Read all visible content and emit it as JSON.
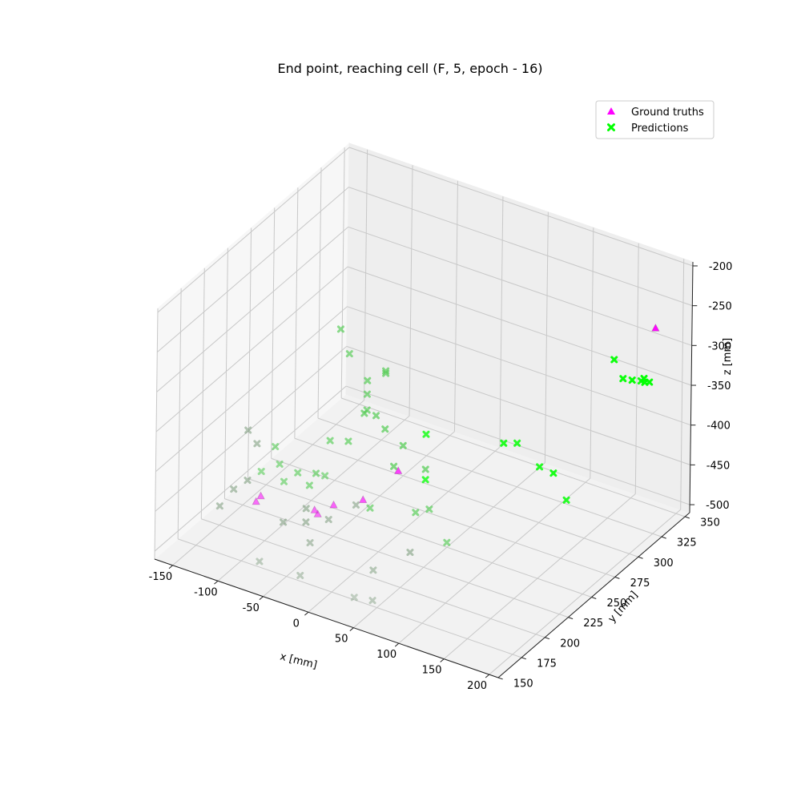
{
  "chart_data": {
    "type": "scatter",
    "projection": "3d",
    "title": "End point, reaching cell (F, 5, epoch - 16)",
    "xlabel": "x [mm]",
    "ylabel": "y [mm]",
    "zlabel": "z [mm]",
    "xlim": [
      -170,
      210
    ],
    "ylim": [
      150,
      355
    ],
    "zlim": [
      -510,
      -195
    ],
    "xticks": [
      -150,
      -100,
      -50,
      0,
      50,
      100,
      150,
      200
    ],
    "yticks": [
      150,
      175,
      200,
      225,
      250,
      275,
      300,
      325,
      350
    ],
    "zticks": [
      -200,
      -250,
      -300,
      -350,
      -400,
      -450,
      -500
    ],
    "grid": true,
    "legend_position": "top-right",
    "series": [
      {
        "name": "Ground truths",
        "marker": "triangle",
        "color": "#ff00ff",
        "points": [
          {
            "x": 180,
            "y": 345,
            "z": -280
          },
          {
            "x": -28,
            "y": 273,
            "z": -468
          },
          {
            "x": -38,
            "y": 245,
            "z": -480
          },
          {
            "x": -55,
            "y": 230,
            "z": -478
          },
          {
            "x": -52,
            "y": 210,
            "z": -468
          },
          {
            "x": -115,
            "y": 210,
            "z": -470
          },
          {
            "x": -115,
            "y": 205,
            "z": -472
          },
          {
            "x": -20,
            "y": 175,
            "z": -415
          }
        ]
      },
      {
        "name": "Predictions",
        "marker": "x",
        "color": "#00ff00",
        "points": [
          {
            "x": 150,
            "y": 340,
            "z": -350
          },
          {
            "x": 155,
            "y": 345,
            "z": -355
          },
          {
            "x": 165,
            "y": 348,
            "z": -352
          },
          {
            "x": 170,
            "y": 340,
            "z": -345
          },
          {
            "x": 172,
            "y": 342,
            "z": -348
          },
          {
            "x": 174,
            "y": 345,
            "z": -350
          },
          {
            "x": 140,
            "y": 340,
            "z": -330
          },
          {
            "x": 130,
            "y": 300,
            "z": -470
          },
          {
            "x": 100,
            "y": 300,
            "z": -440
          },
          {
            "x": 95,
            "y": 320,
            "z": -470
          },
          {
            "x": 75,
            "y": 300,
            "z": -420
          },
          {
            "x": 60,
            "y": 240,
            "z": -490
          },
          {
            "x": 50,
            "y": 310,
            "z": -440
          },
          {
            "x": 30,
            "y": 250,
            "z": -470
          },
          {
            "x": 15,
            "y": 250,
            "z": -480
          },
          {
            "x": 40,
            "y": 220,
            "z": -490
          },
          {
            "x": 20,
            "y": 200,
            "z": -500
          },
          {
            "x": -10,
            "y": 210,
            "z": -440
          },
          {
            "x": 5,
            "y": 270,
            "z": -450
          },
          {
            "x": -5,
            "y": 280,
            "z": -420
          },
          {
            "x": 0,
            "y": 275,
            "z": -470
          },
          {
            "x": -30,
            "y": 270,
            "z": -460
          },
          {
            "x": -20,
            "y": 270,
            "z": -430
          },
          {
            "x": -35,
            "y": 265,
            "z": -410
          },
          {
            "x": -40,
            "y": 260,
            "z": -390
          },
          {
            "x": -45,
            "y": 255,
            "z": -380
          },
          {
            "x": -60,
            "y": 250,
            "z": -310
          },
          {
            "x": -75,
            "y": 255,
            "z": -290
          },
          {
            "x": -35,
            "y": 265,
            "z": -340
          },
          {
            "x": -30,
            "y": 260,
            "z": -330
          },
          {
            "x": -50,
            "y": 260,
            "z": -350
          },
          {
            "x": -45,
            "y": 255,
            "z": -360
          },
          {
            "x": -60,
            "y": 250,
            "z": -420
          },
          {
            "x": -75,
            "y": 245,
            "z": -420
          },
          {
            "x": -85,
            "y": 240,
            "z": -460
          },
          {
            "x": -90,
            "y": 238,
            "z": -475
          },
          {
            "x": -100,
            "y": 235,
            "z": -460
          },
          {
            "x": -110,
            "y": 230,
            "z": -470
          },
          {
            "x": -120,
            "y": 230,
            "z": -430
          },
          {
            "x": -115,
            "y": 230,
            "z": -450
          },
          {
            "x": -130,
            "y": 225,
            "z": -460
          },
          {
            "x": -140,
            "y": 220,
            "z": -470
          },
          {
            "x": -150,
            "y": 215,
            "z": -480
          },
          {
            "x": -130,
            "y": 220,
            "z": -420
          },
          {
            "x": -135,
            "y": 215,
            "z": -400
          },
          {
            "x": -160,
            "y": 210,
            "z": -500
          },
          {
            "x": -95,
            "y": 215,
            "z": -500
          },
          {
            "x": -75,
            "y": 220,
            "z": -480
          },
          {
            "x": -70,
            "y": 215,
            "z": -490
          },
          {
            "x": -55,
            "y": 205,
            "z": -500
          },
          {
            "x": -85,
            "y": 180,
            "z": -510
          },
          {
            "x": -40,
            "y": 180,
            "z": -510
          },
          {
            "x": 40,
            "y": 180,
            "z": -510
          },
          {
            "x": 30,
            "y": 170,
            "z": -500
          },
          {
            "x": -40,
            "y": 210,
            "z": -470
          },
          {
            "x": -65,
            "y": 230,
            "z": -445
          },
          {
            "x": -25,
            "y": 240,
            "z": -480
          },
          {
            "x": -55,
            "y": 262,
            "z": -395
          }
        ]
      }
    ]
  }
}
